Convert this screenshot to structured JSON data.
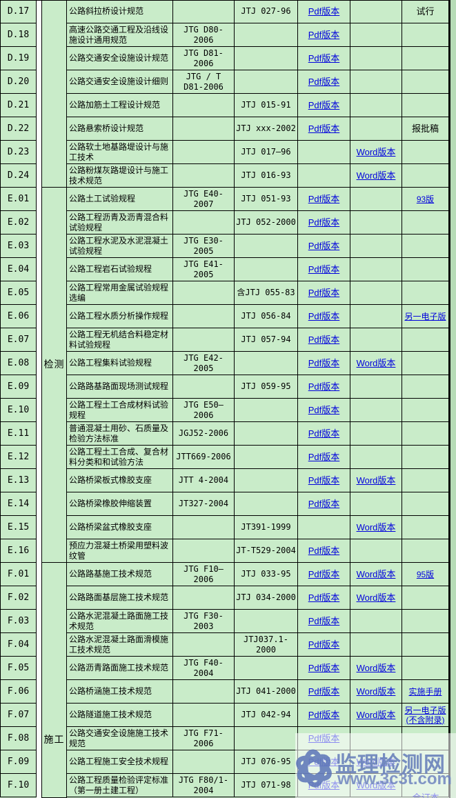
{
  "table": {
    "pdf_label": "Pdf版本",
    "word_label": "Word版本",
    "categories": {
      "d": "",
      "e": "检测",
      "f": "施工"
    },
    "rows": [
      {
        "code": "D.17",
        "cat": "d",
        "name": "公路斜拉桥设计规范",
        "jtg": "",
        "jtj": "JTJ 027-96",
        "pdf": true,
        "word": false,
        "note": "试行",
        "note_link": false
      },
      {
        "code": "D.18",
        "cat": "d",
        "name": "高速公路交通工程及沿线设施设计通用规范",
        "jtg": "JTG D80-2006",
        "jtj": "",
        "pdf": true,
        "word": false,
        "note": "",
        "note_link": false
      },
      {
        "code": "D.19",
        "cat": "d",
        "name": "公路交通安全设施设计规范",
        "jtg": "JTG D81-2006",
        "jtj": "",
        "pdf": true,
        "word": false,
        "note": "",
        "note_link": false
      },
      {
        "code": "D.20",
        "cat": "d",
        "name": "公路交通安全设施设计细则",
        "jtg": "JTG / T D81-2006",
        "jtj": "",
        "pdf": true,
        "word": false,
        "note": "",
        "note_link": false
      },
      {
        "code": "D.21",
        "cat": "d",
        "name": "公路加筋土工程设计规范",
        "jtg": "",
        "jtj": "JTJ 015-91",
        "pdf": true,
        "word": false,
        "note": "",
        "note_link": false
      },
      {
        "code": "D.22",
        "cat": "d",
        "name": "公路悬索桥设计规范",
        "jtg": "",
        "jtj": "JTJ xxx-2002",
        "pdf": true,
        "word": false,
        "note": "报批稿",
        "note_link": false
      },
      {
        "code": "D.23",
        "cat": "d",
        "name": "公路软土地基路堤设计与施工技术",
        "jtg": "",
        "jtj": "JTJ 017—96",
        "pdf": false,
        "word": true,
        "note": "",
        "note_link": false
      },
      {
        "code": "D.24",
        "cat": "d",
        "name": "公路粉煤灰路堤设计与施工技术规范",
        "jtg": "",
        "jtj": "JTJ 016-93",
        "pdf": false,
        "word": true,
        "note": "",
        "note_link": false
      },
      {
        "code": "E.01",
        "cat": "e",
        "name": "公路土工试验规程",
        "jtg": "JTG E40-2007",
        "jtj": "JTJ 051-93",
        "pdf": true,
        "word": false,
        "note": "93版",
        "note_link": true
      },
      {
        "code": "E.02",
        "cat": "e",
        "name": "公路工程沥青及沥青混合料试验规程",
        "jtg": "",
        "jtj": "JTJ 052-2000",
        "pdf": true,
        "word": false,
        "note": "",
        "note_link": false
      },
      {
        "code": "E.03",
        "cat": "e",
        "name": "公路工程水泥及水泥混凝土试验规程",
        "jtg": "JTG E30-2005",
        "jtj": "",
        "pdf": true,
        "word": false,
        "note": "",
        "note_link": false
      },
      {
        "code": "E.04",
        "cat": "e",
        "name": "公路工程岩石试验规程",
        "jtg": "JTG E41-2005",
        "jtj": "",
        "pdf": true,
        "word": false,
        "note": "",
        "note_link": false
      },
      {
        "code": "E.05",
        "cat": "e",
        "name": "公路工程常用金属试验规程选编",
        "jtg": "",
        "jtj": "含JTJ 055-83",
        "pdf": true,
        "word": false,
        "note": "",
        "note_link": false
      },
      {
        "code": "E.06",
        "cat": "e",
        "name": "公路工程水质分析操作规程",
        "jtg": "",
        "jtj": "JTJ 056-84",
        "pdf": true,
        "word": false,
        "note": "另一电子版",
        "note_link": true
      },
      {
        "code": "E.07",
        "cat": "e",
        "name": "公路工程无机结合料稳定材料试验规程",
        "jtg": "",
        "jtj": "JTJ 057-94",
        "pdf": true,
        "word": false,
        "note": "",
        "note_link": false
      },
      {
        "code": "E.08",
        "cat": "e",
        "name": "公路工程集料试验规程",
        "jtg": "JTG E42-2005",
        "jtj": "",
        "pdf": true,
        "word": true,
        "note": "",
        "note_link": false
      },
      {
        "code": "E.09",
        "cat": "e",
        "name": "公路路基路面现场测试规程",
        "jtg": "",
        "jtj": "JTJ 059-95",
        "pdf": true,
        "word": false,
        "note": "",
        "note_link": false
      },
      {
        "code": "E.10",
        "cat": "e",
        "name": "公路工程土工合成材料试验规程",
        "jtg": "JTG E50—2006",
        "jtj": "",
        "pdf": true,
        "word": false,
        "note": "",
        "note_link": false
      },
      {
        "code": "E.11",
        "cat": "e",
        "name": "普通混凝土用砂、石质量及检验方法标准",
        "jtg": "JGJ52-2006",
        "jtj": "",
        "pdf": true,
        "word": false,
        "note": "",
        "note_link": false
      },
      {
        "code": "E.12",
        "cat": "e",
        "name": "公路工程土工合成、复合材料分类和和试验方法",
        "jtg": "JTT669-2006",
        "jtj": "",
        "pdf": true,
        "word": false,
        "note": "",
        "note_link": false
      },
      {
        "code": "E.13",
        "cat": "e",
        "name": "公路桥梁板式橡胶支座",
        "jtg": "JTT 4-2004",
        "jtj": "",
        "pdf": true,
        "word": true,
        "note": "",
        "note_link": false
      },
      {
        "code": "E.14",
        "cat": "e",
        "name": "公路桥梁橡胶伸缩装置",
        "jtg": "JT327-2004",
        "jtj": "",
        "pdf": true,
        "word": false,
        "note": "",
        "note_link": false
      },
      {
        "code": "E.15",
        "cat": "e",
        "name": "公路桥梁盆式橡胶支座",
        "jtg": "",
        "jtj": "JT391-1999",
        "pdf": false,
        "word": true,
        "note": "",
        "note_link": false
      },
      {
        "code": "E.16",
        "cat": "e",
        "name": "预应力混凝土桥梁用塑料波纹管",
        "jtg": "",
        "jtj": "JT-T529-2004",
        "pdf": true,
        "word": false,
        "note": "",
        "note_link": false
      },
      {
        "code": "F.01",
        "cat": "f",
        "name": "公路路基施工技术规范",
        "jtg": "JTG F10—2006",
        "jtj": "JTJ 033-95",
        "pdf": true,
        "word": true,
        "note": "95版",
        "note_link": true
      },
      {
        "code": "F.02",
        "cat": "f",
        "name": "公路路面基层施工技术规范",
        "jtg": "",
        "jtj": "JTJ 034-2000",
        "pdf": true,
        "word": true,
        "note": "",
        "note_link": false
      },
      {
        "code": "F.03",
        "cat": "f",
        "name": "公路水泥混凝土路面施工技术规范",
        "jtg": "JTG F30-2003",
        "jtj": "",
        "pdf": true,
        "word": false,
        "note": "",
        "note_link": false
      },
      {
        "code": "F.04",
        "cat": "f",
        "name": "公路水泥混凝土路面滑模施工技术规范",
        "jtg": "",
        "jtj": "JTJ037.1-2000",
        "pdf": true,
        "word": false,
        "note": "",
        "note_link": false
      },
      {
        "code": "F.05",
        "cat": "f",
        "name": "公路沥青路面施工技术规范",
        "jtg": "JTG F40-2004",
        "jtj": "",
        "pdf": true,
        "word": true,
        "note": "",
        "note_link": false
      },
      {
        "code": "F.06",
        "cat": "f",
        "name": "公路桥涵施工技术规范",
        "jtg": "",
        "jtj": "JTJ 041-2000",
        "pdf": true,
        "word": true,
        "note": "实施手册",
        "note_link": true
      },
      {
        "code": "F.07",
        "cat": "f",
        "name": "公路隧道施工技术规范",
        "jtg": "",
        "jtj": "JTJ 042-94",
        "pdf": true,
        "word": true,
        "note": "另一电子版(不含附录)",
        "note_link": true
      },
      {
        "code": "F.08",
        "cat": "f",
        "name": "公路交通安全设施施工技术规范",
        "jtg": "JTG F71-2006",
        "jtj": "",
        "pdf": true,
        "word": false,
        "note": "",
        "note_link": false
      },
      {
        "code": "F.09",
        "cat": "f",
        "name": "公路工程施工安全技术规程",
        "jtg": "",
        "jtj": "JTJ 076-95",
        "pdf": true,
        "word": true,
        "note": "",
        "note_link": false
      },
      {
        "code": "F.10",
        "cat": "f",
        "name": "公路工程质量检验评定标准（第一册土建工程）",
        "jtg": "JTG F80/1-2004",
        "jtj": "JTJ 071-98",
        "pdf": true,
        "word": true,
        "note": "合订本",
        "note_link": true
      }
    ]
  },
  "watermark": {
    "site_name": "监理检测网",
    "url": "www.3c3t.com",
    "logo": "trefoil-logo",
    "text_color": "#677eb9",
    "logo_color": "#5b74b8"
  },
  "colors": {
    "cell_bg": "#c9ecc9",
    "border": "#000000",
    "link": "#0000dd",
    "right_strip": "#b7dcb7",
    "gap_strip": "#fbfdfb"
  }
}
